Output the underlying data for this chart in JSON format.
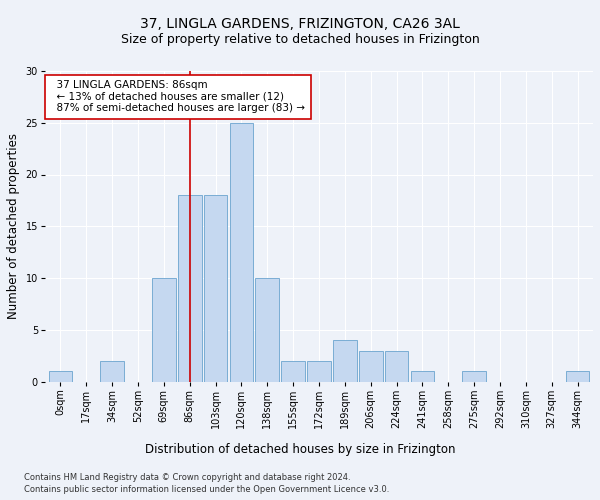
{
  "title_line1": "37, LINGLA GARDENS, FRIZINGTON, CA26 3AL",
  "title_line2": "Size of property relative to detached houses in Frizington",
  "xlabel": "Distribution of detached houses by size in Frizington",
  "ylabel": "Number of detached properties",
  "footnote1": "Contains HM Land Registry data © Crown copyright and database right 2024.",
  "footnote2": "Contains public sector information licensed under the Open Government Licence v3.0.",
  "bin_labels": [
    "0sqm",
    "17sqm",
    "34sqm",
    "52sqm",
    "69sqm",
    "86sqm",
    "103sqm",
    "120sqm",
    "138sqm",
    "155sqm",
    "172sqm",
    "189sqm",
    "206sqm",
    "224sqm",
    "241sqm",
    "258sqm",
    "275sqm",
    "292sqm",
    "310sqm",
    "327sqm",
    "344sqm"
  ],
  "bar_heights": [
    1,
    0,
    2,
    0,
    10,
    18,
    18,
    25,
    10,
    2,
    2,
    4,
    3,
    3,
    1,
    0,
    1,
    0,
    0,
    0,
    1
  ],
  "bar_color": "#c5d8f0",
  "bar_edge_color": "#7aadd4",
  "red_line_index": 5,
  "red_line_color": "#cc0000",
  "annotation_text_line1": "  37 LINGLA GARDENS: 86sqm",
  "annotation_text_line2": "  ← 13% of detached houses are smaller (12)",
  "annotation_text_line3": "  87% of semi-detached houses are larger (83) →",
  "annotation_box_color": "#ffffff",
  "annotation_box_edgecolor": "#cc0000",
  "ylim": [
    0,
    30
  ],
  "yticks": [
    0,
    5,
    10,
    15,
    20,
    25,
    30
  ],
  "bg_color": "#eef2f9",
  "grid_color": "#ffffff",
  "title_fontsize": 10,
  "subtitle_fontsize": 9,
  "axis_label_fontsize": 8.5,
  "tick_fontsize": 7,
  "annotation_fontsize": 7.5,
  "footnote_fontsize": 6.0
}
